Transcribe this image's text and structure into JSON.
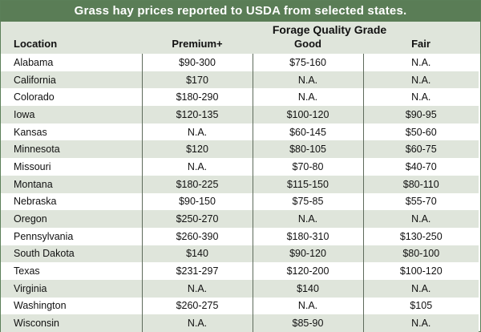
{
  "title": "Grass hay prices reported to USDA from selected states.",
  "grade_header": "Forage Quality Grade",
  "columns": {
    "location": "Location",
    "premium": "Premium+",
    "good": "Good",
    "fair": "Fair"
  },
  "rows": [
    {
      "location": "Alabama",
      "premium": "$90-300",
      "good": "$75-160",
      "fair": "N.A."
    },
    {
      "location": "California",
      "premium": "$170",
      "good": "N.A.",
      "fair": "N.A."
    },
    {
      "location": "Colorado",
      "premium": "$180-290",
      "good": "N.A.",
      "fair": "N.A."
    },
    {
      "location": "Iowa",
      "premium": "$120-135",
      "good": "$100-120",
      "fair": "$90-95"
    },
    {
      "location": "Kansas",
      "premium": "N.A.",
      "good": "$60-145",
      "fair": "$50-60"
    },
    {
      "location": "Minnesota",
      "premium": "$120",
      "good": "$80-105",
      "fair": "$60-75"
    },
    {
      "location": "Missouri",
      "premium": "N.A.",
      "good": "$70-80",
      "fair": "$40-70"
    },
    {
      "location": "Montana",
      "premium": "$180-225",
      "good": "$115-150",
      "fair": "$80-110"
    },
    {
      "location": "Nebraska",
      "premium": "$90-150",
      "good": "$75-85",
      "fair": "$55-70"
    },
    {
      "location": "Oregon",
      "premium": "$250-270",
      "good": "N.A.",
      "fair": "N.A."
    },
    {
      "location": "Pennsylvania",
      "premium": "$260-390",
      "good": "$180-310",
      "fair": "$130-250"
    },
    {
      "location": "South Dakota",
      "premium": "$140",
      "good": "$90-120",
      "fair": "$80-100"
    },
    {
      "location": "Texas",
      "premium": "$231-297",
      "good": "$120-200",
      "fair": "$100-120"
    },
    {
      "location": "Virginia",
      "premium": "N.A.",
      "good": "$140",
      "fair": "N.A."
    },
    {
      "location": "Washington",
      "premium": "$260-275",
      "good": "N.A.",
      "fair": "$105"
    },
    {
      "location": "Wisconsin",
      "premium": "N.A.",
      "good": "$85-90",
      "fair": "N.A."
    }
  ]
}
